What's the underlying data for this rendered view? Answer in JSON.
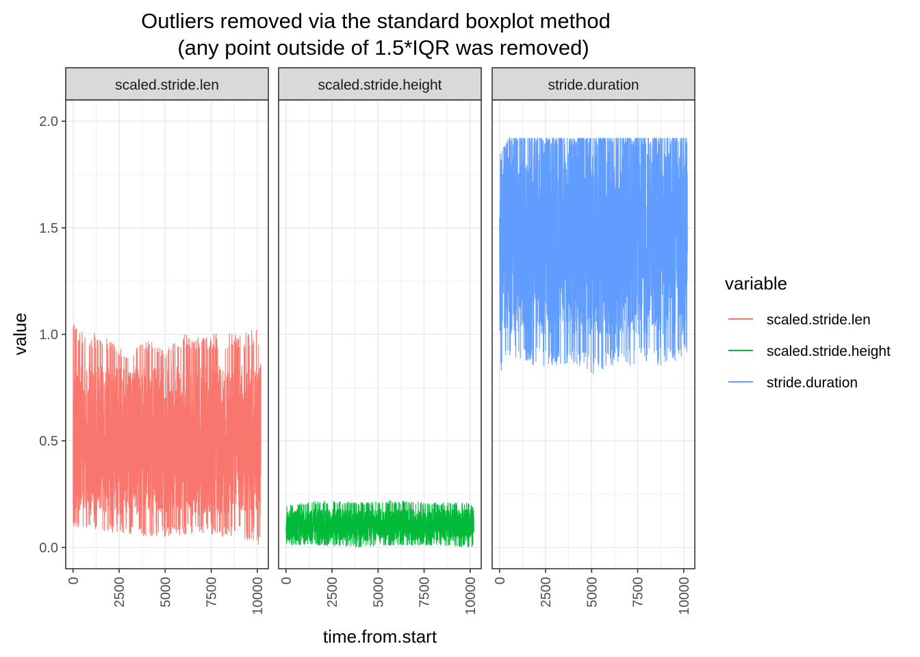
{
  "chart_data": {
    "type": "line",
    "title_lines": [
      "Outliers removed via the standard boxplot method",
      "(any point outside of 1.5*IQR was removed)"
    ],
    "xlabel": "time.from.start",
    "ylabel": "value",
    "xlim": [
      -400,
      10600
    ],
    "ylim": [
      -0.1,
      2.1
    ],
    "x_ticks": [
      0,
      2500,
      5000,
      7500,
      10000
    ],
    "x_tick_labels": [
      "0",
      "2500",
      "5000",
      "7500",
      "10000"
    ],
    "y_ticks": [
      0.0,
      0.5,
      1.0,
      1.5,
      2.0
    ],
    "y_tick_labels": [
      "0.0",
      "0.5",
      "1.0",
      "1.5",
      "2.0"
    ],
    "grid": true,
    "legend": {
      "title": "variable",
      "position": "right",
      "entries": [
        "scaled.stride.len",
        "scaled.stride.height",
        "stride.duration"
      ]
    },
    "facets": [
      {
        "label": "scaled.stride.len",
        "color": "#F8766D",
        "x_range": [
          0,
          10200
        ],
        "approx_range": [
          0.0,
          1.05
        ],
        "typical_band": [
          0.15,
          0.85
        ],
        "envelope": {
          "x": [
            0,
            1000,
            2000,
            3000,
            4000,
            5000,
            6000,
            7000,
            8000,
            9000,
            10000,
            10200
          ],
          "upper": [
            1.05,
            1.02,
            0.98,
            0.9,
            0.98,
            0.92,
            1.0,
            1.0,
            1.01,
            1.0,
            1.04,
            0.85
          ],
          "lower": [
            0.1,
            0.08,
            0.07,
            0.06,
            0.05,
            0.05,
            0.06,
            0.06,
            0.05,
            0.04,
            0.02,
            0.0
          ]
        }
      },
      {
        "label": "scaled.stride.height",
        "color": "#00BA38",
        "x_range": [
          0,
          10200
        ],
        "approx_range": [
          0.0,
          0.22
        ],
        "typical_band": [
          0.03,
          0.18
        ],
        "envelope": {
          "x": [
            0,
            2000,
            4000,
            6000,
            8000,
            10000,
            10200
          ],
          "upper": [
            0.2,
            0.22,
            0.21,
            0.22,
            0.21,
            0.21,
            0.18
          ],
          "lower": [
            0.01,
            0.01,
            0.0,
            0.01,
            0.01,
            0.0,
            0.0
          ]
        }
      },
      {
        "label": "stride.duration",
        "color": "#619CFF",
        "x_range": [
          0,
          10200
        ],
        "approx_range": [
          0.76,
          1.92
        ],
        "typical_band": [
          1.0,
          1.85
        ],
        "envelope": {
          "x": [
            0,
            500,
            1000,
            2000,
            3000,
            4000,
            5000,
            6000,
            7000,
            8000,
            9000,
            10000,
            10200
          ],
          "upper": [
            1.84,
            1.92,
            1.92,
            1.92,
            1.92,
            1.92,
            1.92,
            1.92,
            1.92,
            1.92,
            1.92,
            1.92,
            1.92
          ],
          "lower": [
            0.76,
            0.89,
            0.89,
            0.85,
            0.85,
            0.85,
            0.81,
            0.85,
            0.85,
            0.85,
            0.85,
            0.89,
            0.89
          ]
        }
      }
    ]
  }
}
